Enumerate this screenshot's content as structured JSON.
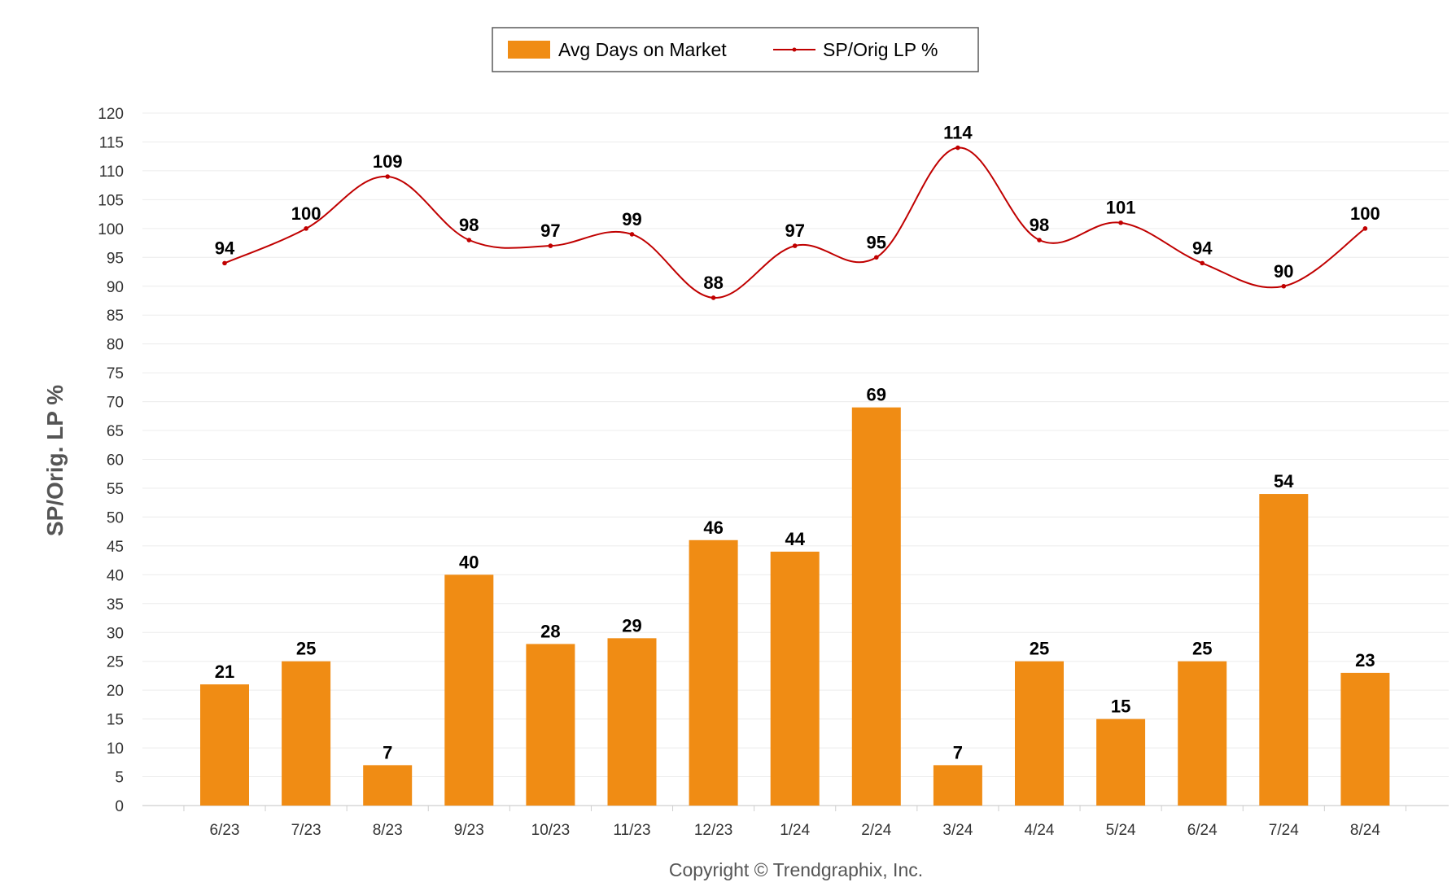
{
  "chart_data": {
    "type": "bar",
    "ylabel": "SP/Orig. LP %",
    "ylim": [
      0,
      120
    ],
    "y_ticks": [
      "0",
      "5",
      "10",
      "15",
      "20",
      "25",
      "30",
      "35",
      "40",
      "45",
      "50",
      "55",
      "60",
      "65",
      "70",
      "75",
      "80",
      "85",
      "90",
      "95",
      "100",
      "105",
      "110",
      "115",
      "120"
    ],
    "categories": [
      "6/23",
      "7/23",
      "8/23",
      "9/23",
      "10/23",
      "11/23",
      "12/23",
      "1/24",
      "2/24",
      "3/24",
      "4/24",
      "5/24",
      "6/24",
      "7/24",
      "8/24"
    ],
    "series": [
      {
        "name": "Avg Days on Market",
        "type": "bar",
        "color": "#F08C14",
        "values": [
          21,
          25,
          7,
          40,
          28,
          29,
          46,
          44,
          69,
          7,
          25,
          15,
          25,
          54,
          23
        ]
      },
      {
        "name": "SP/Orig LP %",
        "type": "line",
        "color": "#C00000",
        "values": [
          94,
          100,
          109,
          98,
          97,
          99,
          88,
          97,
          95,
          114,
          98,
          101,
          94,
          90,
          100
        ]
      }
    ],
    "legend_position": "top-center",
    "grid": true
  },
  "footer": {
    "copyright": "Copyright © Trendgraphix, Inc."
  }
}
